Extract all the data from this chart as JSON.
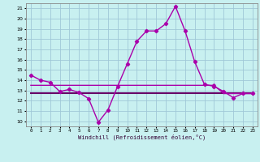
{
  "xlabel": "Windchill (Refroidissement éolien,°C)",
  "bg_color": "#c8f0f0",
  "grid_color": "#a0c8d8",
  "line_color": "#aa00aa",
  "line_color2": "#660066",
  "x": [
    0,
    1,
    2,
    3,
    4,
    5,
    6,
    7,
    8,
    9,
    10,
    11,
    12,
    13,
    14,
    15,
    16,
    17,
    18,
    19,
    20,
    21,
    22,
    23
  ],
  "y_windchill": [
    14.5,
    14.0,
    13.8,
    12.9,
    13.1,
    12.8,
    12.2,
    9.9,
    11.1,
    13.4,
    15.6,
    17.8,
    18.8,
    18.8,
    19.5,
    21.2,
    18.8,
    15.8,
    13.6,
    13.4,
    12.9,
    12.3,
    12.7,
    12.7
  ],
  "y_temp_upper": [
    13.5,
    13.5,
    13.5,
    13.5,
    13.5,
    13.5,
    13.5,
    13.5,
    13.5,
    13.5,
    13.5,
    13.5,
    13.5,
    13.5,
    13.5,
    13.5,
    13.5,
    13.5,
    13.5,
    13.5,
    12.7,
    12.7,
    12.7,
    12.7
  ],
  "y_temp_lower": [
    12.7,
    12.7,
    12.7,
    12.7,
    12.7,
    12.7,
    12.7,
    12.7,
    12.7,
    12.7,
    12.7,
    12.7,
    12.7,
    12.7,
    12.7,
    12.7,
    12.7,
    12.7,
    12.7,
    12.7,
    12.7,
    12.7,
    12.7,
    12.7
  ],
  "ylim": [
    9.5,
    21.5
  ],
  "xlim": [
    -0.5,
    23.5
  ],
  "yticks": [
    10,
    11,
    12,
    13,
    14,
    15,
    16,
    17,
    18,
    19,
    20,
    21
  ],
  "xtick_labels": [
    "0",
    "1",
    "2",
    "3",
    "4",
    "5",
    "6",
    "7",
    "8",
    "9",
    "10",
    "11",
    "12",
    "13",
    "14",
    "15",
    "16",
    "17",
    "18",
    "19",
    "20",
    "21",
    "22",
    "23"
  ]
}
